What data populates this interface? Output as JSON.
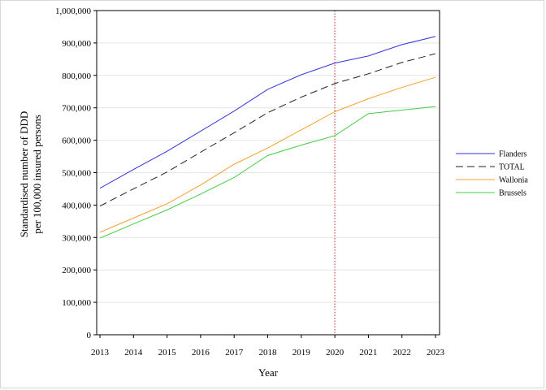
{
  "chart_data": {
    "type": "line",
    "title": "",
    "xlabel": "Year",
    "ylabel": [
      "Standardised number of DDD",
      "per 100,000 insured persons"
    ],
    "x": [
      2013,
      2014,
      2015,
      2016,
      2017,
      2018,
      2019,
      2020,
      2021,
      2022,
      2023
    ],
    "xlim": [
      2013,
      2023
    ],
    "ylim": [
      0,
      1000000
    ],
    "yticks": [
      0,
      100000,
      200000,
      300000,
      400000,
      500000,
      600000,
      700000,
      800000,
      900000,
      1000000
    ],
    "ytick_labels": [
      "0",
      "100,000",
      "200,000",
      "300,000",
      "400,000",
      "500,000",
      "600,000",
      "700,000",
      "800,000",
      "900,000",
      "1,000,000"
    ],
    "grid": "horizontal",
    "legend_position": "right",
    "reference_line": {
      "x": 2020,
      "style": "dotted",
      "color": "#c0504d"
    },
    "series": [
      {
        "name": "Flanders",
        "color": "#3333dd",
        "dash": "solid",
        "values": [
          452000,
          510000,
          566000,
          628000,
          690000,
          757000,
          802000,
          838000,
          860000,
          895000,
          920000
        ]
      },
      {
        "name": "TOTAL",
        "color": "#222222",
        "dash": "dashed",
        "values": [
          397000,
          450000,
          502000,
          563000,
          623000,
          685000,
          733000,
          775000,
          805000,
          840000,
          867000
        ]
      },
      {
        "name": "Wallonia",
        "color": "#f5a030",
        "dash": "solid",
        "values": [
          316000,
          360000,
          404000,
          462000,
          526000,
          576000,
          632000,
          688000,
          728000,
          763000,
          794000
        ]
      },
      {
        "name": "Brussels",
        "color": "#44cc44",
        "dash": "solid",
        "values": [
          298000,
          342000,
          385000,
          434000,
          485000,
          553000,
          585000,
          614000,
          682000,
          693000,
          704000
        ]
      }
    ]
  }
}
